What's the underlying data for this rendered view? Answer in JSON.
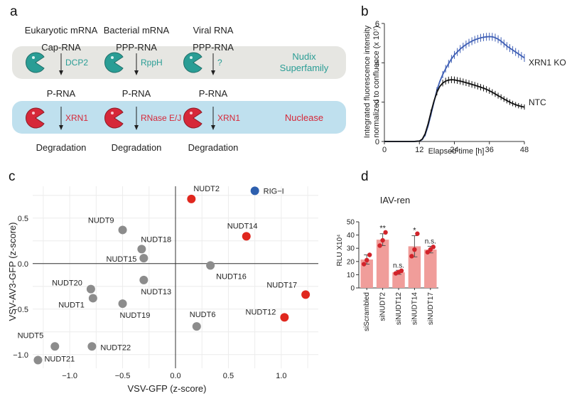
{
  "colors": {
    "teal": "#2a9d95",
    "red": "#d62839",
    "blue": "#3f5fb5",
    "grey": "#8c8c8c",
    "panel_a_top": "#e6e6e2",
    "panel_a_bottom": "#bfe0ee",
    "bar": "#f09d9a",
    "dot_red": "#e0271e",
    "dot_blue": "#2d5fae"
  },
  "panel_a": {
    "label": "a",
    "columns": [
      {
        "title": "Eukaryotic mRNA",
        "substrate": "Cap-RNA",
        "enzyme1": "DCP2",
        "product": "P-RNA",
        "enzyme2": "XRN1",
        "outcome": "Degradation"
      },
      {
        "title": "Bacterial mRNA",
        "substrate": "PPP-RNA",
        "enzyme1": "RppH",
        "product": "P-RNA",
        "enzyme2": "RNase E/J",
        "outcome": "Degradation"
      },
      {
        "title": "Viral RNA",
        "substrate": "PPP-RNA",
        "enzyme1": "?",
        "product": "P-RNA",
        "enzyme2": "XRN1",
        "outcome": "Degradation"
      }
    ],
    "row1_label_line1": "Nudix",
    "row1_label_line2": "Superfamily",
    "row2_label": "Nuclease",
    "icons": [
      "pacman-teal-icon",
      "pacman-red-icon"
    ]
  },
  "panel_b": {
    "label": "b",
    "chart_data": {
      "type": "line",
      "xlabel": "Elapsed time [h]",
      "ylabel_line1": "Integrated fluorescence intensity",
      "ylabel_line2": "normalized to confluence (x 10⁷)",
      "xlim": [
        0,
        48
      ],
      "ylim": [
        0,
        6
      ],
      "xticks": [
        0,
        12,
        24,
        36,
        48
      ],
      "yticks": [
        0,
        2,
        4,
        6
      ],
      "x": [
        0,
        2,
        4,
        6,
        8,
        10,
        12,
        13,
        14,
        15,
        16,
        17,
        18,
        19,
        20,
        21,
        22,
        23,
        24,
        25,
        26,
        27,
        28,
        29,
        30,
        31,
        32,
        33,
        34,
        35,
        36,
        37,
        38,
        39,
        40,
        41,
        42,
        43,
        44,
        45,
        46,
        47,
        48
      ],
      "series": [
        {
          "name": "XRN1 KO",
          "color": "#3f5fb5",
          "values": [
            0,
            0,
            0,
            0,
            0,
            0,
            0.02,
            0.1,
            0.35,
            0.8,
            1.4,
            2.0,
            2.6,
            3.05,
            3.4,
            3.7,
            3.95,
            4.2,
            4.4,
            4.55,
            4.7,
            4.82,
            4.93,
            5.02,
            5.1,
            5.17,
            5.22,
            5.27,
            5.3,
            5.32,
            5.33,
            5.32,
            5.28,
            5.2,
            5.1,
            4.98,
            4.85,
            4.75,
            4.65,
            4.55,
            4.45,
            4.35,
            4.25
          ]
        },
        {
          "name": "NTC",
          "color": "#111111",
          "values": [
            0,
            0,
            0,
            0,
            0,
            0,
            0.02,
            0.12,
            0.4,
            0.9,
            1.5,
            2.05,
            2.5,
            2.8,
            2.97,
            3.07,
            3.12,
            3.14,
            3.13,
            3.1,
            3.07,
            3.03,
            2.99,
            2.95,
            2.9,
            2.86,
            2.81,
            2.76,
            2.71,
            2.65,
            2.58,
            2.5,
            2.42,
            2.33,
            2.25,
            2.16,
            2.08,
            2.0,
            1.93,
            1.87,
            1.82,
            1.78,
            1.75
          ]
        }
      ]
    }
  },
  "panel_c": {
    "label": "c",
    "chart_data": {
      "type": "scatter",
      "xlabel": "VSV-GFP (z-score)",
      "ylabel": "VSV-AV3-GFP (z-score)",
      "xlim": [
        -1.35,
        1.35
      ],
      "ylim": [
        -1.15,
        0.85
      ],
      "xticks": [
        -1.0,
        -0.5,
        0.0,
        0.5,
        1.0
      ],
      "yticks": [
        -1.0,
        -0.5,
        0.0,
        0.5
      ],
      "xtick_labels": [
        "−1.0",
        "−0.5",
        "0.0",
        "0.5",
        "1.0"
      ],
      "ytick_labels": [
        "−1.0",
        "−0.5",
        "0.0",
        "0.5"
      ],
      "points": [
        {
          "name": "RIG−I",
          "x": 0.75,
          "y": 0.8,
          "group": "blue"
        },
        {
          "name": "NUDT2",
          "x": 0.15,
          "y": 0.71,
          "group": "red"
        },
        {
          "name": "NUDT14",
          "x": 0.67,
          "y": 0.3,
          "group": "red"
        },
        {
          "name": "NUDT17",
          "x": 1.23,
          "y": -0.34,
          "group": "red"
        },
        {
          "name": "NUDT12",
          "x": 1.03,
          "y": -0.59,
          "group": "red"
        },
        {
          "name": "NUDT9",
          "x": -0.5,
          "y": 0.37,
          "group": "grey"
        },
        {
          "name": "NUDT18",
          "x": -0.32,
          "y": 0.16,
          "group": "grey"
        },
        {
          "name": "NUDT15",
          "x": -0.3,
          "y": 0.06,
          "group": "grey"
        },
        {
          "name": "NUDT16",
          "x": 0.33,
          "y": -0.02,
          "group": "grey"
        },
        {
          "name": "NUDT20",
          "x": -0.8,
          "y": -0.28,
          "group": "grey"
        },
        {
          "name": "NUDT13",
          "x": -0.3,
          "y": -0.18,
          "group": "grey"
        },
        {
          "name": "NUDT1",
          "x": -0.78,
          "y": -0.38,
          "group": "grey"
        },
        {
          "name": "NUDT19",
          "x": -0.5,
          "y": -0.44,
          "group": "grey"
        },
        {
          "name": "NUDT6",
          "x": 0.2,
          "y": -0.69,
          "group": "grey"
        },
        {
          "name": "NUDT5",
          "x": -1.14,
          "y": -0.91,
          "group": "grey"
        },
        {
          "name": "NUDT22",
          "x": -0.79,
          "y": -0.91,
          "group": "grey"
        },
        {
          "name": "NUDT21",
          "x": -1.3,
          "y": -1.06,
          "group": "grey"
        }
      ]
    }
  },
  "panel_d": {
    "label": "d",
    "chart_data": {
      "type": "bar",
      "title": "IAV-ren",
      "ylabel": "RLU X10⁴",
      "ylim": [
        0,
        50
      ],
      "yticks": [
        0,
        10,
        20,
        30,
        40,
        50
      ],
      "categories": [
        "siScrambled",
        "siNUDT2",
        "siNUDT12",
        "siNUDT14",
        "siNUDT17"
      ],
      "values": [
        21.5,
        36.5,
        11.8,
        31.5,
        29.0
      ],
      "errors": [
        3.5,
        4.5,
        1.5,
        8.0,
        2.5
      ],
      "replicates": [
        [
          18,
          21,
          25
        ],
        [
          32,
          36,
          42
        ],
        [
          11,
          12,
          13
        ],
        [
          24,
          29,
          41
        ],
        [
          27,
          29,
          31
        ]
      ],
      "significance": [
        "",
        "**",
        "n.s.",
        "*",
        "n.s."
      ]
    }
  }
}
